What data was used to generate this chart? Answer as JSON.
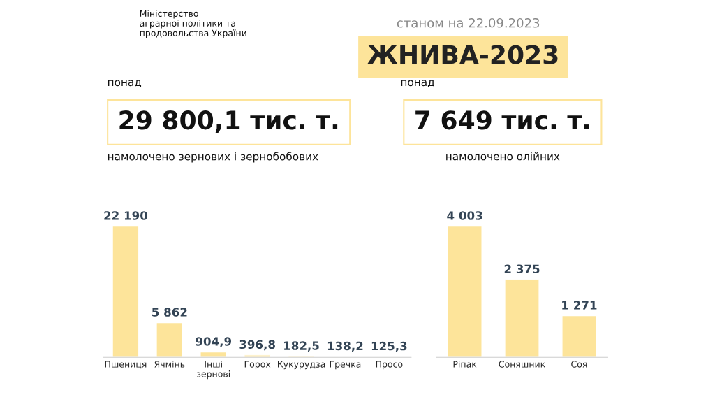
{
  "chart_data": [
    {
      "type": "other",
      "title": "ЖНИВА-2023",
      "subtitle": "станом на 22.09.2023",
      "annotations": [
        "Міністерство\nаграрної політики та\nпродовольства України",
        "понад",
        "29 800,1 тис. т.",
        "намолочено зернових і зернобобових",
        "понад",
        "7 649 тис. т.",
        "намолочено олійних"
      ]
    },
    {
      "type": "bar",
      "categories": [
        "Пшениця",
        "Ячмінь",
        "Інші\nзернові",
        "Горох",
        "Кукурудза",
        "Гречка",
        "Просо"
      ],
      "values": [
        22190,
        5862,
        904.9,
        396.8,
        182.5,
        138.2,
        125.3
      ],
      "value_labels": [
        "22 190",
        "5 862",
        "904,9",
        "396,8",
        "182,5",
        "138,2",
        "125,3"
      ],
      "color": "#fde49a"
    },
    {
      "type": "bar",
      "categories": [
        "Ріпак",
        "Соняшник",
        "Соя"
      ],
      "values": [
        4003,
        2375,
        1271
      ],
      "value_labels": [
        "4 003",
        "2 375",
        "1 271"
      ],
      "color": "#fde49a"
    }
  ]
}
